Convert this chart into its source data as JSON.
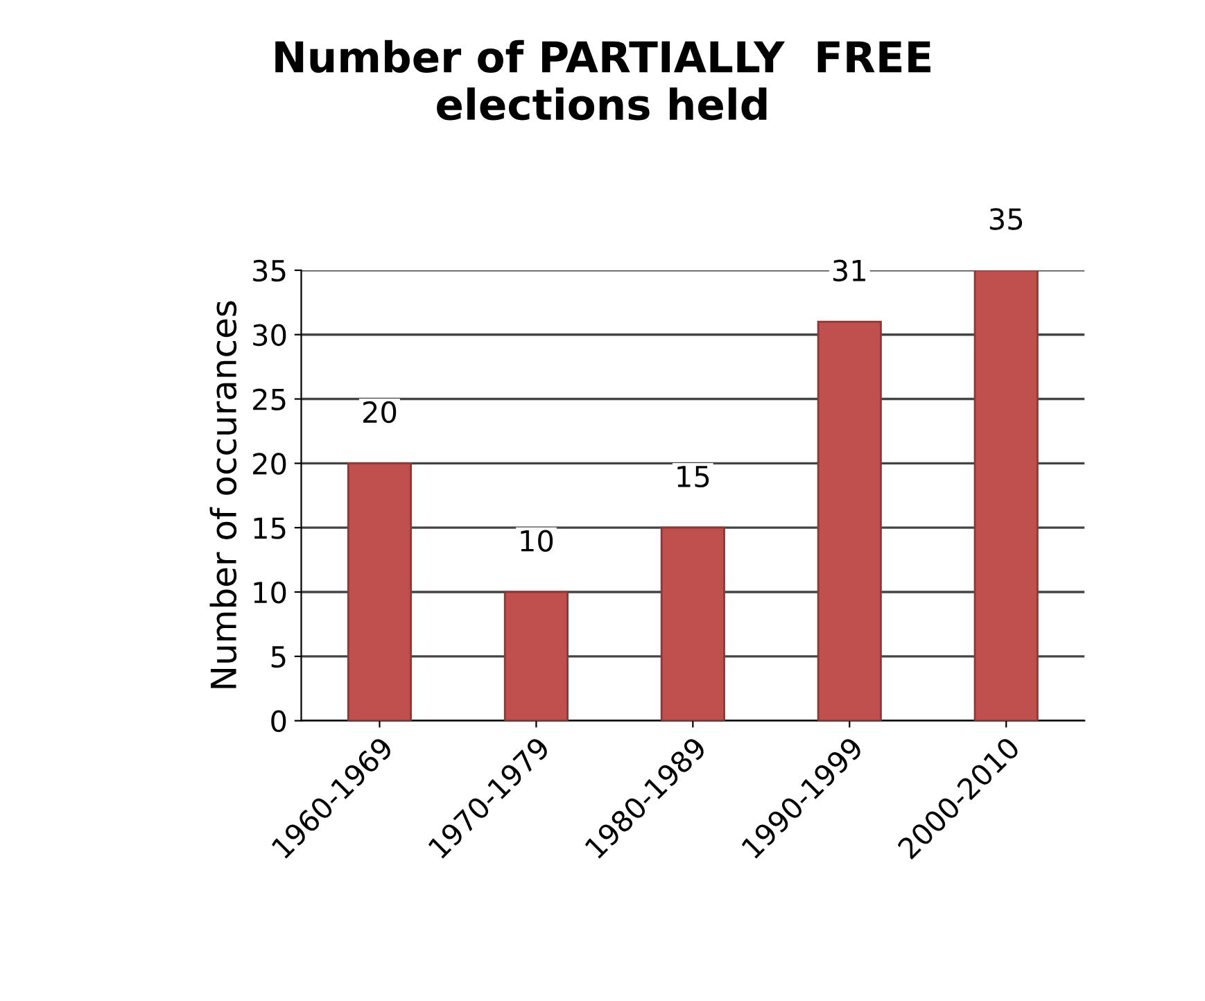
{
  "chart_data": {
    "type": "bar",
    "title": "Number of PARTIALLY  FREE\nelections held",
    "ylabel": "Number of occurances",
    "categories": [
      "1960-1969",
      "1970-1979",
      "1980-1989",
      "1990-1999",
      "2000-2010"
    ],
    "values": [
      20,
      10,
      15,
      31,
      35
    ],
    "color": "#c0504d",
    "ylim": [
      0,
      35
    ],
    "yticks": [
      0,
      5,
      10,
      15,
      20,
      25,
      30,
      35
    ],
    "grid": "y",
    "data_labels": true
  }
}
